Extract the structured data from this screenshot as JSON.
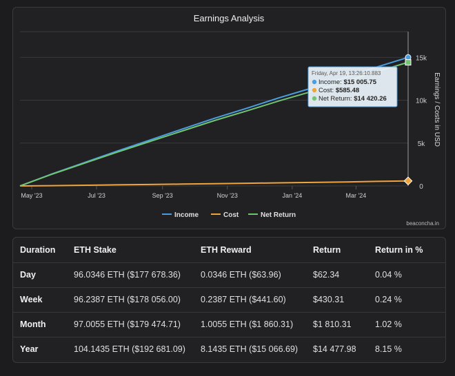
{
  "chart_data": {
    "type": "line",
    "title": "Earnings Analysis",
    "ylabel": "Earnings / Costs in USD",
    "xlabel": "",
    "x_ticks": [
      "May '23",
      "Jul '23",
      "Sep '23",
      "Nov '23",
      "Jan '24",
      "Mar '24"
    ],
    "x_start": "2023-04-20",
    "x_end": "2024-04-19",
    "ylim": [
      0,
      18000
    ],
    "y_ticks": [
      0,
      5000,
      10000,
      15000
    ],
    "y_tick_labels": [
      "0",
      "5k",
      "10k",
      "15k"
    ],
    "grid": true,
    "legend": "bottom",
    "credit": "beaconcha.in",
    "x": [
      "2023-04-20",
      "2023-05-20",
      "2023-06-20",
      "2023-07-20",
      "2023-08-20",
      "2023-09-20",
      "2023-10-20",
      "2023-11-20",
      "2023-12-20",
      "2024-01-20",
      "2024-02-20",
      "2024-03-20",
      "2024-04-19"
    ],
    "series": [
      {
        "name": "Income",
        "color": "#4a9ee0",
        "values": [
          0,
          1400,
          2750,
          4050,
          5350,
          6650,
          7900,
          9100,
          10300,
          11450,
          12650,
          13850,
          15005.75
        ]
      },
      {
        "name": "Cost",
        "color": "#f0a53c",
        "values": [
          0,
          35,
          80,
          125,
          170,
          220,
          265,
          315,
          360,
          410,
          460,
          530,
          585.48
        ]
      },
      {
        "name": "Net Return",
        "color": "#72c472",
        "values": [
          0,
          1365,
          2670,
          3925,
          5180,
          6430,
          7635,
          8785,
          9940,
          11040,
          12190,
          13320,
          14420.26
        ]
      }
    ],
    "tooltip": {
      "date": "Friday, Apr 19, 13:26:10.883",
      "rows": [
        {
          "label": "Income:",
          "value": "$15 005.75",
          "color": "#4a9ee0"
        },
        {
          "label": "Cost:",
          "value": "$585.48",
          "color": "#f0a53c"
        },
        {
          "label": "Net Return:",
          "value": "$14 420.26",
          "color": "#72c472"
        }
      ]
    }
  },
  "table": {
    "headers": [
      "Duration",
      "ETH Stake",
      "ETH Reward",
      "Return",
      "Return in %"
    ],
    "rows": [
      [
        "Day",
        "96.0346 ETH ($177 678.36)",
        "0.0346 ETH ($63.96)",
        "$62.34",
        "0.04 %"
      ],
      [
        "Week",
        "96.2387 ETH ($178 056.00)",
        "0.2387 ETH ($441.60)",
        "$430.31",
        "0.24 %"
      ],
      [
        "Month",
        "97.0055 ETH ($179 474.71)",
        "1.0055 ETH ($1 860.31)",
        "$1 810.31",
        "1.02 %"
      ],
      [
        "Year",
        "104.1435 ETH ($192 681.09)",
        "8.1435 ETH ($15 066.69)",
        "$14 477.98",
        "8.15 %"
      ]
    ]
  }
}
